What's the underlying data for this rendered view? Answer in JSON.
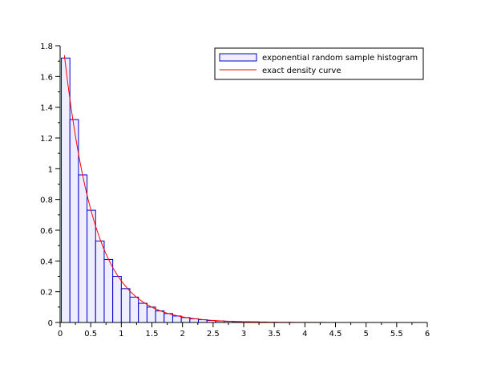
{
  "chart_data": {
    "type": "bar",
    "xlim": [
      0,
      6
    ],
    "ylim": [
      0,
      1.8
    ],
    "x_ticks": [
      "0",
      "0.5",
      "1",
      "1.5",
      "2",
      "2.5",
      "3",
      "3.5",
      "4",
      "4.5",
      "5",
      "5.5",
      "6"
    ],
    "y_ticks": [
      "0",
      "0.2",
      "0.4",
      "0.6",
      "0.8",
      "1",
      "1.2",
      "1.4",
      "1.6",
      "1.8"
    ],
    "grid": false,
    "legend_position": "top-right",
    "series": [
      {
        "name": "exponential random sample histogram",
        "kind": "histogram",
        "color": "#0000cc",
        "fill": "#eeeeff",
        "bin_width": 0.14,
        "bin_edges_start": 0.02,
        "values": [
          1.72,
          1.32,
          0.96,
          0.73,
          0.53,
          0.41,
          0.3,
          0.22,
          0.165,
          0.125,
          0.1,
          0.075,
          0.058,
          0.042,
          0.032,
          0.024,
          0.018,
          0.013,
          0.01,
          0.008,
          0.006,
          0.005,
          0.004,
          0.003
        ]
      },
      {
        "name": "exact density curve",
        "kind": "line",
        "color": "#ff0000",
        "function": "2*exp(-2x)",
        "x_range": [
          0.07,
          6
        ]
      }
    ]
  }
}
